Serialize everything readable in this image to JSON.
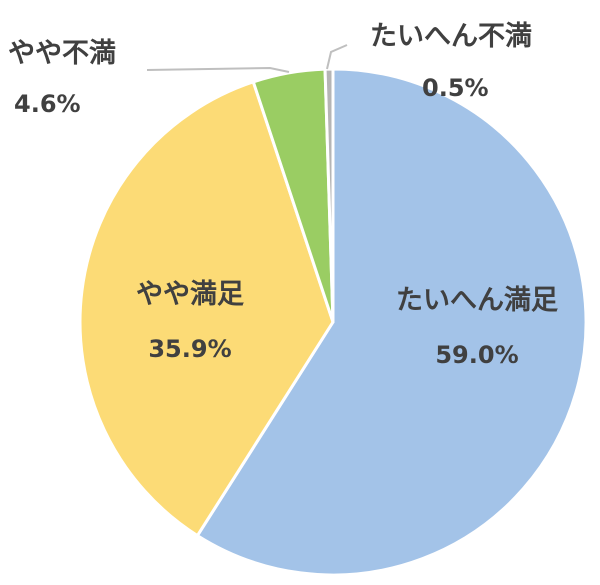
{
  "chart_data": {
    "type": "pie",
    "slices": [
      {
        "label": "たいへん満足",
        "value": 59.0,
        "display": "59.0%",
        "color": "#a3c3e8"
      },
      {
        "label": "やや満足",
        "value": 35.9,
        "display": "35.9%",
        "color": "#fcdb76"
      },
      {
        "label": "やや不満",
        "value": 4.6,
        "display": "4.6%",
        "color": "#9acd63"
      },
      {
        "label": "たいへん不満",
        "value": 0.5,
        "display": "0.5%",
        "color": "#b5b5b5"
      }
    ],
    "start_angle_deg": 0,
    "direction": "clockwise",
    "legend": "none"
  }
}
